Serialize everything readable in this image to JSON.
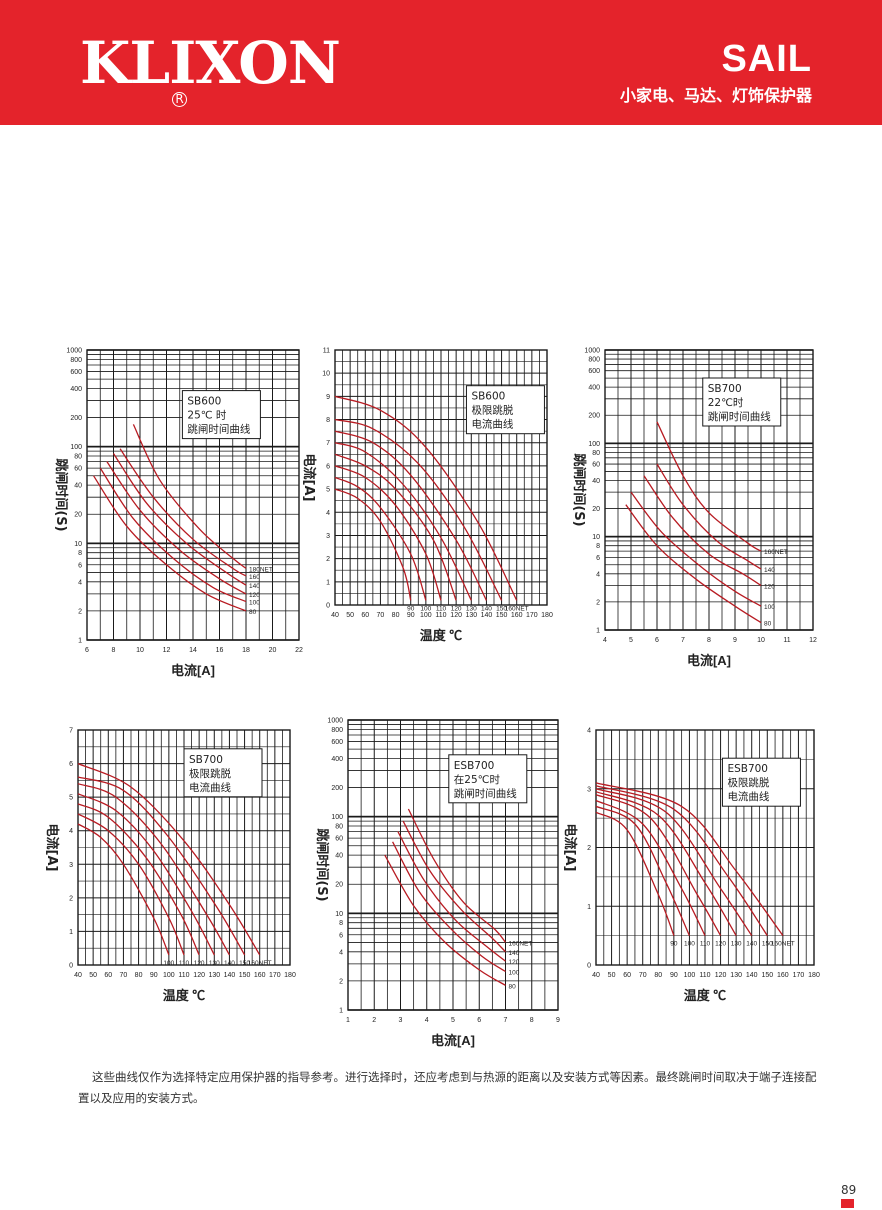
{
  "header": {
    "brand": "KLIXON",
    "registered": "R",
    "series": "SAIL",
    "subtitle": "小家电、马达、灯饰保护器"
  },
  "colors": {
    "header": "#e4232b",
    "curve": "#b81b22",
    "grid": "#1a1a1a"
  },
  "note": "这些曲线仅作为选择特定应用保护器的指导参考。进行选择时，还应考虑到与热源的距离以及安装方式等因素。最终跳闸时间取决于端子连接配置以及应用的安装方式。",
  "page_number": "89",
  "chart_data": [
    {
      "type": "line",
      "title": "SB600\n25℃ 时\n跳闸时间曲线",
      "xlabel": "电流[A]",
      "ylabel": "跳闸时间(S)",
      "xscale": "linear",
      "yscale": "log",
      "xlim": [
        6,
        22
      ],
      "ylim": [
        1,
        1000
      ],
      "xticks": [
        "6",
        "8",
        "10",
        "12",
        "14",
        "16",
        "18",
        "20",
        "22"
      ],
      "yticks": [
        "1",
        "2",
        "4",
        "6",
        "8",
        "10",
        "20",
        "40",
        "60",
        "80",
        "100",
        "200",
        "400",
        "600",
        "800",
        "1000"
      ],
      "series": [
        {
          "name": "80",
          "x": [
            6.5,
            9,
            12,
            15,
            18
          ],
          "y": [
            50,
            15,
            6,
            3,
            2
          ]
        },
        {
          "name": "100",
          "x": [
            7,
            9.5,
            12.5,
            15.5,
            18
          ],
          "y": [
            60,
            18,
            7,
            3.5,
            2.5
          ]
        },
        {
          "name": "120",
          "x": [
            7.5,
            10,
            13,
            16,
            18
          ],
          "y": [
            70,
            22,
            8.5,
            4.3,
            3
          ]
        },
        {
          "name": "140",
          "x": [
            8,
            10.5,
            13.5,
            16.5,
            18
          ],
          "y": [
            85,
            26,
            10,
            5,
            3.7
          ]
        },
        {
          "name": "160",
          "x": [
            8.5,
            11,
            14,
            17,
            18
          ],
          "y": [
            95,
            30,
            11,
            5.5,
            4.6
          ]
        },
        {
          "name": "180NET",
          "x": [
            9.5,
            11.5,
            14.5,
            17,
            18
          ],
          "y": [
            170,
            45,
            14,
            7,
            5.5
          ]
        }
      ]
    },
    {
      "type": "line",
      "title": "SB600\n极限跳脱\n电流曲线",
      "xlabel": "温度 ℃",
      "ylabel": "电流[A]",
      "xlim": [
        40,
        180
      ],
      "ylim": [
        0,
        11
      ],
      "xticks": [
        "40",
        "50",
        "60",
        "70",
        "80",
        "90",
        "100",
        "110",
        "120",
        "130",
        "140",
        "150",
        "160",
        "170",
        "180"
      ],
      "yticks": [
        "0",
        "1",
        "2",
        "3",
        "4",
        "5",
        "6",
        "7",
        "8",
        "9",
        "10",
        "11"
      ],
      "series": [
        {
          "name": "90",
          "x": [
            40,
            55,
            70,
            85,
            90
          ],
          "y": [
            5.0,
            4.6,
            3.6,
            1.6,
            0.2
          ]
        },
        {
          "name": "100",
          "x": [
            40,
            55,
            70,
            90,
            100
          ],
          "y": [
            5.5,
            5.1,
            4.2,
            2.2,
            0.2
          ]
        },
        {
          "name": "110",
          "x": [
            40,
            60,
            80,
            100,
            110
          ],
          "y": [
            6.0,
            5.5,
            4.3,
            2.2,
            0.2
          ]
        },
        {
          "name": "120",
          "x": [
            40,
            60,
            80,
            105,
            120
          ],
          "y": [
            6.5,
            6.0,
            5.0,
            2.8,
            0.2
          ]
        },
        {
          "name": "130",
          "x": [
            40,
            60,
            85,
            110,
            130
          ],
          "y": [
            7.0,
            6.6,
            5.2,
            2.9,
            0.2
          ]
        },
        {
          "name": "140",
          "x": [
            40,
            65,
            90,
            120,
            140
          ],
          "y": [
            7.5,
            7.0,
            5.6,
            2.8,
            0.2
          ]
        },
        {
          "name": "150",
          "x": [
            40,
            65,
            95,
            125,
            150
          ],
          "y": [
            8.0,
            7.6,
            6.1,
            3.4,
            0.2
          ]
        },
        {
          "name": "160NET",
          "x": [
            40,
            70,
            100,
            135,
            160
          ],
          "y": [
            9.0,
            8.4,
            6.8,
            3.5,
            0.2
          ]
        }
      ]
    },
    {
      "type": "line",
      "title": "SB700\n22℃时\n跳闸时间曲线",
      "xlabel": "电流[A]",
      "ylabel": "跳闸时间(S)",
      "xscale": "linear",
      "yscale": "log",
      "xlim": [
        4,
        12
      ],
      "ylim": [
        1,
        1000
      ],
      "xticks": [
        "4",
        "5",
        "6",
        "7",
        "8",
        "9",
        "10",
        "11",
        "12"
      ],
      "yticks": [
        "1",
        "2",
        "4",
        "6",
        "8",
        "10",
        "20",
        "40",
        "60",
        "80",
        "100",
        "200",
        "400",
        "600",
        "800",
        "1000"
      ],
      "series": [
        {
          "name": "80",
          "x": [
            4.8,
            6,
            7.5,
            9,
            10
          ],
          "y": [
            22,
            8,
            3.5,
            1.8,
            1.2
          ]
        },
        {
          "name": "100",
          "x": [
            5.0,
            6.2,
            7.8,
            9,
            10
          ],
          "y": [
            30,
            11,
            4.5,
            2.6,
            1.8
          ]
        },
        {
          "name": "120",
          "x": [
            5.5,
            6.6,
            8,
            9.3,
            10
          ],
          "y": [
            45,
            16,
            6.5,
            4,
            3
          ]
        },
        {
          "name": "140",
          "x": [
            6.0,
            7,
            8.3,
            9.5,
            10
          ],
          "y": [
            60,
            22,
            9,
            5.5,
            4.5
          ]
        },
        {
          "name": "160NET",
          "x": [
            6.0,
            7,
            8,
            9.5,
            10
          ],
          "y": [
            170,
            45,
            18,
            8.5,
            7
          ]
        }
      ]
    },
    {
      "type": "line",
      "title": "SB700\n极限跳脱\n电流曲线",
      "xlabel": "温度 ℃",
      "ylabel": "电流[A]",
      "xlim": [
        40,
        180
      ],
      "ylim": [
        0,
        7
      ],
      "xticks": [
        "40",
        "50",
        "60",
        "70",
        "80",
        "90",
        "100",
        "110",
        "120",
        "130",
        "140",
        "150",
        "160",
        "170",
        "180"
      ],
      "yticks": [
        "0",
        "1",
        "2",
        "3",
        "4",
        "5",
        "6",
        "7"
      ],
      "series": [
        {
          "name": "100",
          "x": [
            40,
            55,
            70,
            90,
            100
          ],
          "y": [
            4.2,
            3.8,
            3.0,
            1.4,
            0.3
          ]
        },
        {
          "name": "110",
          "x": [
            40,
            60,
            80,
            100,
            110
          ],
          "y": [
            4.5,
            4.0,
            3.0,
            1.4,
            0.3
          ]
        },
        {
          "name": "120",
          "x": [
            40,
            60,
            85,
            108,
            120
          ],
          "y": [
            4.8,
            4.4,
            3.2,
            1.5,
            0.3
          ]
        },
        {
          "name": "130",
          "x": [
            40,
            65,
            90,
            115,
            130
          ],
          "y": [
            5.1,
            4.6,
            3.4,
            1.6,
            0.3
          ]
        },
        {
          "name": "140",
          "x": [
            40,
            65,
            95,
            125,
            140
          ],
          "y": [
            5.4,
            5.0,
            3.6,
            1.5,
            0.3
          ]
        },
        {
          "name": "150",
          "x": [
            40,
            70,
            100,
            132,
            150
          ],
          "y": [
            5.6,
            5.2,
            3.8,
            1.7,
            0.3
          ]
        },
        {
          "name": "160NET",
          "x": [
            40,
            75,
            110,
            140,
            160
          ],
          "y": [
            6.0,
            5.3,
            3.7,
            1.8,
            0.3
          ]
        }
      ]
    },
    {
      "type": "line",
      "title": "ESB700\n在25℃时\n跳闸时间曲线",
      "xlabel": "电流[A]",
      "ylabel": "跳闸时间(S)",
      "xscale": "linear",
      "yscale": "log",
      "xlim": [
        1,
        9
      ],
      "ylim": [
        1,
        1000
      ],
      "xticks": [
        "1",
        "2",
        "3",
        "4",
        "5",
        "6",
        "7",
        "8",
        "9"
      ],
      "yticks": [
        "1",
        "2",
        "4",
        "6",
        "8",
        "10",
        "20",
        "40",
        "60",
        "80",
        "100",
        "200",
        "400",
        "600",
        "800",
        "1000"
      ],
      "series": [
        {
          "name": "80",
          "x": [
            2.4,
            3.5,
            4.7,
            6,
            7
          ],
          "y": [
            40,
            12,
            5,
            2.6,
            1.8
          ]
        },
        {
          "name": "100",
          "x": [
            2.7,
            3.7,
            4.9,
            6.1,
            7
          ],
          "y": [
            55,
            17,
            7,
            3.6,
            2.5
          ]
        },
        {
          "name": "120",
          "x": [
            2.9,
            3.9,
            5.1,
            6.3,
            7
          ],
          "y": [
            70,
            22,
            8.5,
            4.5,
            3.2
          ]
        },
        {
          "name": "140",
          "x": [
            3.1,
            4.1,
            5.3,
            6.5,
            7
          ],
          "y": [
            90,
            28,
            11,
            5.5,
            4
          ]
        },
        {
          "name": "160NET",
          "x": [
            3.3,
            4.3,
            5.4,
            6.6,
            7
          ],
          "y": [
            120,
            35,
            13,
            6.8,
            5
          ]
        }
      ]
    },
    {
      "type": "line",
      "title": "ESB700\n极限跳脱\n电流曲线",
      "xlabel": "温度 ℃",
      "ylabel": "电流[A]",
      "xlim": [
        40,
        180
      ],
      "ylim": [
        0,
        4
      ],
      "xticks": [
        "40",
        "50",
        "60",
        "70",
        "80",
        "90",
        "100",
        "110",
        "120",
        "130",
        "140",
        "150",
        "160",
        "170",
        "180"
      ],
      "yticks": [
        "0",
        "1",
        "2",
        "3",
        "4"
      ],
      "series": [
        {
          "name": "90",
          "x": [
            40,
            60,
            80,
            90
          ],
          "y": [
            2.6,
            2.3,
            1.2,
            0.5
          ]
        },
        {
          "name": "100",
          "x": [
            40,
            65,
            85,
            100
          ],
          "y": [
            2.7,
            2.4,
            1.4,
            0.5
          ]
        },
        {
          "name": "110",
          "x": [
            40,
            70,
            95,
            110
          ],
          "y": [
            2.8,
            2.4,
            1.3,
            0.5
          ]
        },
        {
          "name": "120",
          "x": [
            40,
            75,
            105,
            120
          ],
          "y": [
            2.9,
            2.5,
            1.2,
            0.5
          ]
        },
        {
          "name": "130",
          "x": [
            40,
            80,
            110,
            130
          ],
          "y": [
            2.95,
            2.55,
            1.4,
            0.5
          ]
        },
        {
          "name": "140",
          "x": [
            40,
            85,
            120,
            140
          ],
          "y": [
            3.0,
            2.6,
            1.3,
            0.5
          ]
        },
        {
          "name": "150",
          "x": [
            40,
            90,
            125,
            150
          ],
          "y": [
            3.05,
            2.65,
            1.5,
            0.5
          ]
        },
        {
          "name": "160NET",
          "x": [
            40,
            95,
            130,
            160
          ],
          "y": [
            3.1,
            2.7,
            1.6,
            0.5
          ]
        }
      ]
    }
  ]
}
